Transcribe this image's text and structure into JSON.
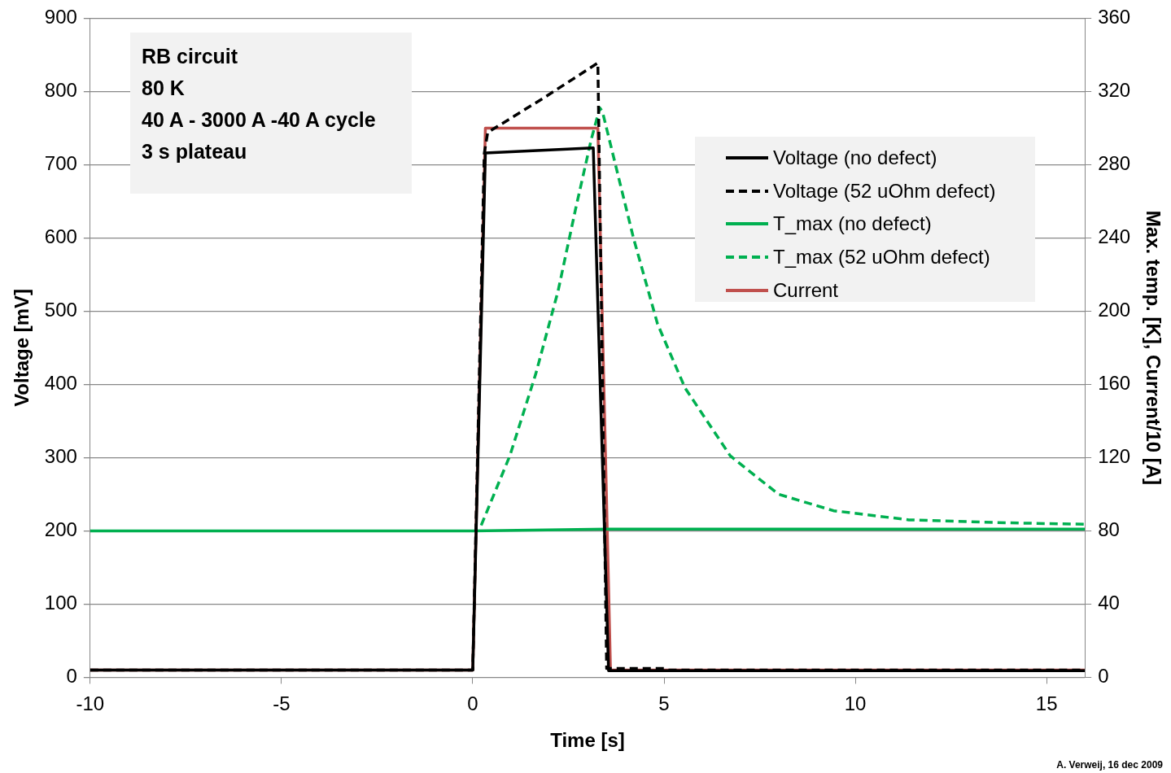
{
  "chart_data": {
    "type": "line",
    "xlabel": "Time [s]",
    "ylabel": "Voltage [mV]",
    "y2label": "Max. temp. [K], Current/10 [A]",
    "xlim": [
      -10,
      16
    ],
    "xticks": [
      -10,
      -5,
      0,
      5,
      10,
      15
    ],
    "ylim": [
      0,
      900
    ],
    "yticks": [
      0,
      100,
      200,
      300,
      400,
      500,
      600,
      700,
      800,
      900
    ],
    "y2lim": [
      0,
      360
    ],
    "y2ticks": [
      0,
      40,
      80,
      120,
      160,
      200,
      240,
      280,
      320,
      360
    ],
    "grid": "y",
    "legend": "top right",
    "marker": "none",
    "annotations": [
      "RB circuit",
      "80 K",
      "40 A - 3000 A -40 A cycle",
      "3 s plateau",
      "A. Verweij, 16 dec 2009"
    ],
    "series": [
      {
        "name": "Voltage (no defect)",
        "color": "#000000",
        "line_style": "solid",
        "x": [
          -10,
          0,
          0.33,
          3.15,
          3.55,
          16
        ],
        "values": [
          10,
          10,
          716,
          723,
          9,
          9
        ]
      },
      {
        "name": "Voltage (52 uOhm defect)",
        "color": "#000000",
        "line_style": "dashed",
        "x": [
          -10,
          0,
          0.3,
          0.39,
          1.88,
          3.27,
          3.5,
          5,
          5.1,
          16
        ],
        "values": [
          10,
          10,
          715,
          744,
          792,
          839,
          12,
          12,
          10,
          10
        ]
      },
      {
        "name": "T_max (no defect)",
        "color": "#00b050",
        "line_style": "solid",
        "axis": "y2",
        "x": [
          -10,
          0,
          3.5,
          16
        ],
        "values": [
          80,
          80,
          81,
          81
        ]
      },
      {
        "name": "T_max (52 uOhm defect)",
        "color": "#00b050",
        "line_style": "dashed",
        "axis": "y2",
        "x": [
          0.22,
          0.97,
          1.65,
          2.23,
          2.69,
          3.1,
          3.32,
          3.39,
          4.2,
          4.83,
          5.55,
          6.73,
          7.99,
          9.43,
          11.4,
          13.7,
          16
        ],
        "values": [
          83,
          121,
          166,
          211,
          256,
          294,
          311,
          309,
          240,
          193,
          158,
          121,
          100,
          91,
          86,
          84.5,
          83.6
        ]
      },
      {
        "name": "Current",
        "color": "#c0504d",
        "line_style": "solid",
        "axis": "y2",
        "x": [
          -10,
          0,
          0.33,
          3.27,
          3.6,
          16
        ],
        "values": [
          4,
          4,
          300,
          300,
          4,
          4
        ]
      }
    ]
  }
}
